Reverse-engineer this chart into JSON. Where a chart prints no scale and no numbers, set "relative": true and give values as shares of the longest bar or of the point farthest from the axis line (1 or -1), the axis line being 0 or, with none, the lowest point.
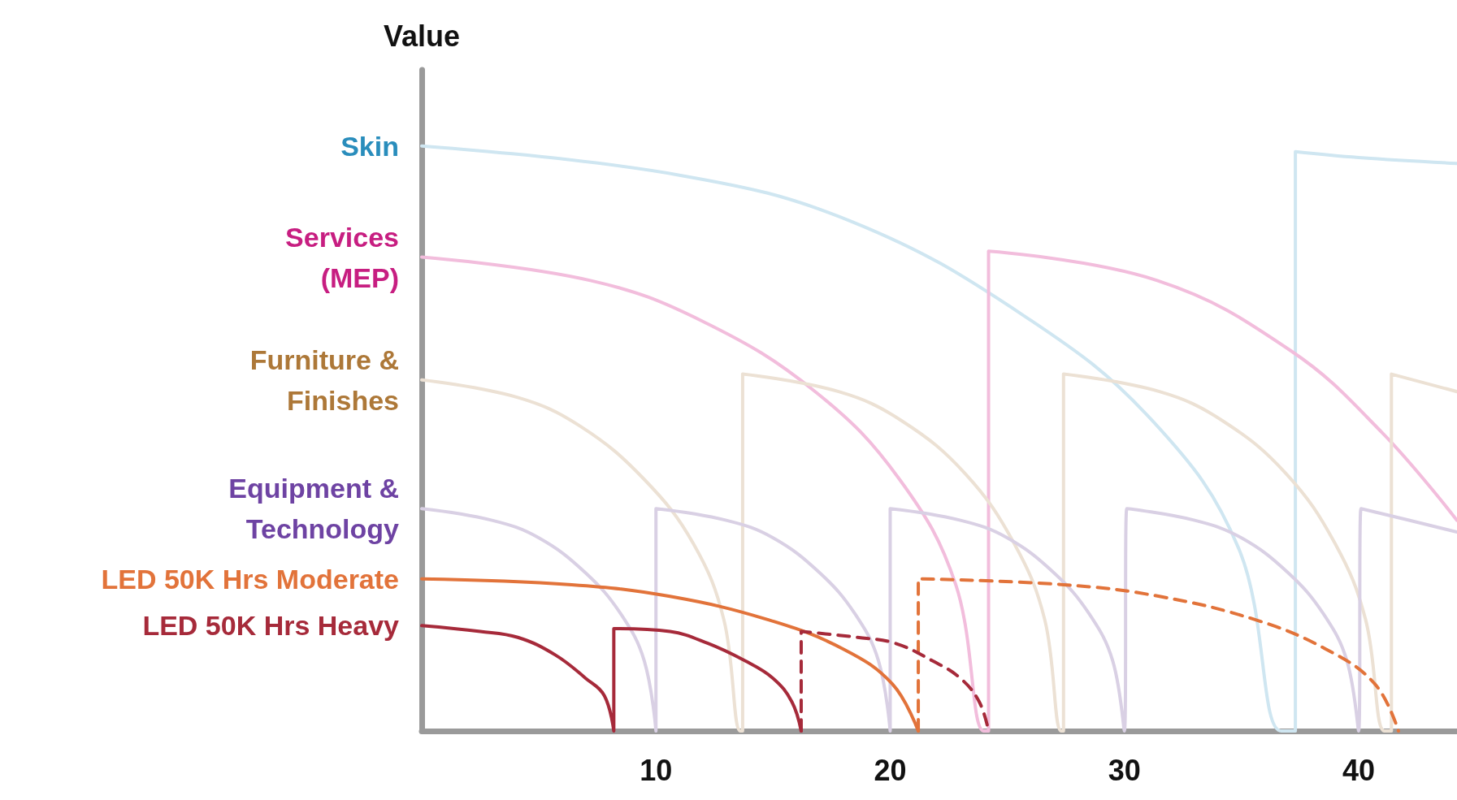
{
  "chart_data": {
    "type": "line",
    "ylabel": "Value",
    "relative": true,
    "xlim": [
      0,
      44.2
    ],
    "xticks": [
      10,
      20,
      30,
      40
    ],
    "grid": false,
    "legend": false,
    "marker": "none",
    "line_style": "solid",
    "series": [
      {
        "name": "Skin",
        "color": "#cfe6f1",
        "x": [
          0,
          11,
          18.4,
          25.7,
          31.2,
          34.9,
          36.7,
          37.3,
          37.3,
          40,
          44.2
        ],
        "values": [
          1,
          0.95,
          0.87,
          0.71,
          0.53,
          0.31,
          0,
          0,
          0.99,
          0.98,
          0.97
        ]
      },
      {
        "name": "Services\n(MEP)",
        "color": "#f2bddc",
        "x": [
          0,
          7.2,
          12,
          16.8,
          20.4,
          22.8,
          24,
          24.2,
          24.2,
          31.4,
          37.1,
          41,
          44.2
        ],
        "values": [
          0.81,
          0.77,
          0.7,
          0.58,
          0.43,
          0.25,
          0,
          0,
          0.82,
          0.77,
          0.65,
          0.51,
          0.36
        ]
      },
      {
        "name": "Furniture &\nFinishes",
        "color": "#ece1d4",
        "x": [
          0,
          4.1,
          6.8,
          9.5,
          11.6,
          12.9,
          13.6,
          13.7,
          13.7,
          17.8,
          20.5,
          23.2,
          25.3,
          26.6,
          27.3,
          27.4,
          27.4,
          31.5,
          34.2,
          36.9,
          39,
          40.3,
          41.1,
          41.4,
          41.4,
          44.2
        ],
        "values": [
          0.6,
          0.57,
          0.52,
          0.43,
          0.32,
          0.19,
          0,
          0,
          0.61,
          0.58,
          0.53,
          0.44,
          0.32,
          0.19,
          0,
          0,
          0.61,
          0.58,
          0.53,
          0.44,
          0.32,
          0.19,
          0,
          0,
          0.61,
          0.58
        ]
      },
      {
        "name": "Equipment &\nTechnology",
        "color": "#d9d0e4",
        "x": [
          0,
          3,
          5,
          7,
          8.5,
          9.5,
          10,
          10,
          13,
          15,
          17,
          18.5,
          19.5,
          20,
          20,
          23,
          25,
          27,
          28.5,
          29.5,
          30,
          30.1,
          33,
          35,
          37,
          38.5,
          39.5,
          40,
          40.1,
          44.2
        ],
        "values": [
          0.38,
          0.36,
          0.33,
          0.27,
          0.2,
          0.12,
          0,
          0.38,
          0.36,
          0.33,
          0.27,
          0.2,
          0.12,
          0,
          0.38,
          0.36,
          0.33,
          0.27,
          0.2,
          0.12,
          0,
          0.38,
          0.36,
          0.33,
          0.27,
          0.2,
          0.12,
          0,
          0.38,
          0.34
        ]
      },
      {
        "name": "LED 50K Hrs Moderate",
        "color": "#e2733a",
        "x": [
          0,
          6.4,
          10.6,
          14.8,
          18,
          20.1,
          21.2
        ],
        "values": [
          0.26,
          0.25,
          0.23,
          0.19,
          0.14,
          0.08,
          0
        ]
      },
      {
        "color": "#e2733a",
        "line_style": "dashed",
        "x": [
          21.2,
          21.2,
          27.4,
          31.5,
          35.6,
          38.6,
          40.7,
          41.7
        ],
        "values": [
          0,
          0.26,
          0.25,
          0.23,
          0.19,
          0.14,
          0.08,
          0
        ]
      },
      {
        "name": "LED 50K Hrs Heavy",
        "color": "#a62a3a",
        "x": [
          0,
          2.5,
          4.1,
          5.7,
          7,
          7.8,
          8.2,
          8.2,
          10.6,
          12.2,
          13.8,
          15,
          15.8,
          16.2
        ],
        "values": [
          0.18,
          0.17,
          0.16,
          0.13,
          0.09,
          0.06,
          0,
          0.175,
          0.17,
          0.15,
          0.12,
          0.09,
          0.05,
          0
        ]
      },
      {
        "color": "#a62a3a",
        "line_style": "dashed",
        "x": [
          16.2,
          16.2,
          18.6,
          20.2,
          21.8,
          23,
          23.8,
          24.2
        ],
        "values": [
          0,
          0.17,
          0.16,
          0.15,
          0.12,
          0.09,
          0.05,
          0
        ]
      }
    ]
  }
}
